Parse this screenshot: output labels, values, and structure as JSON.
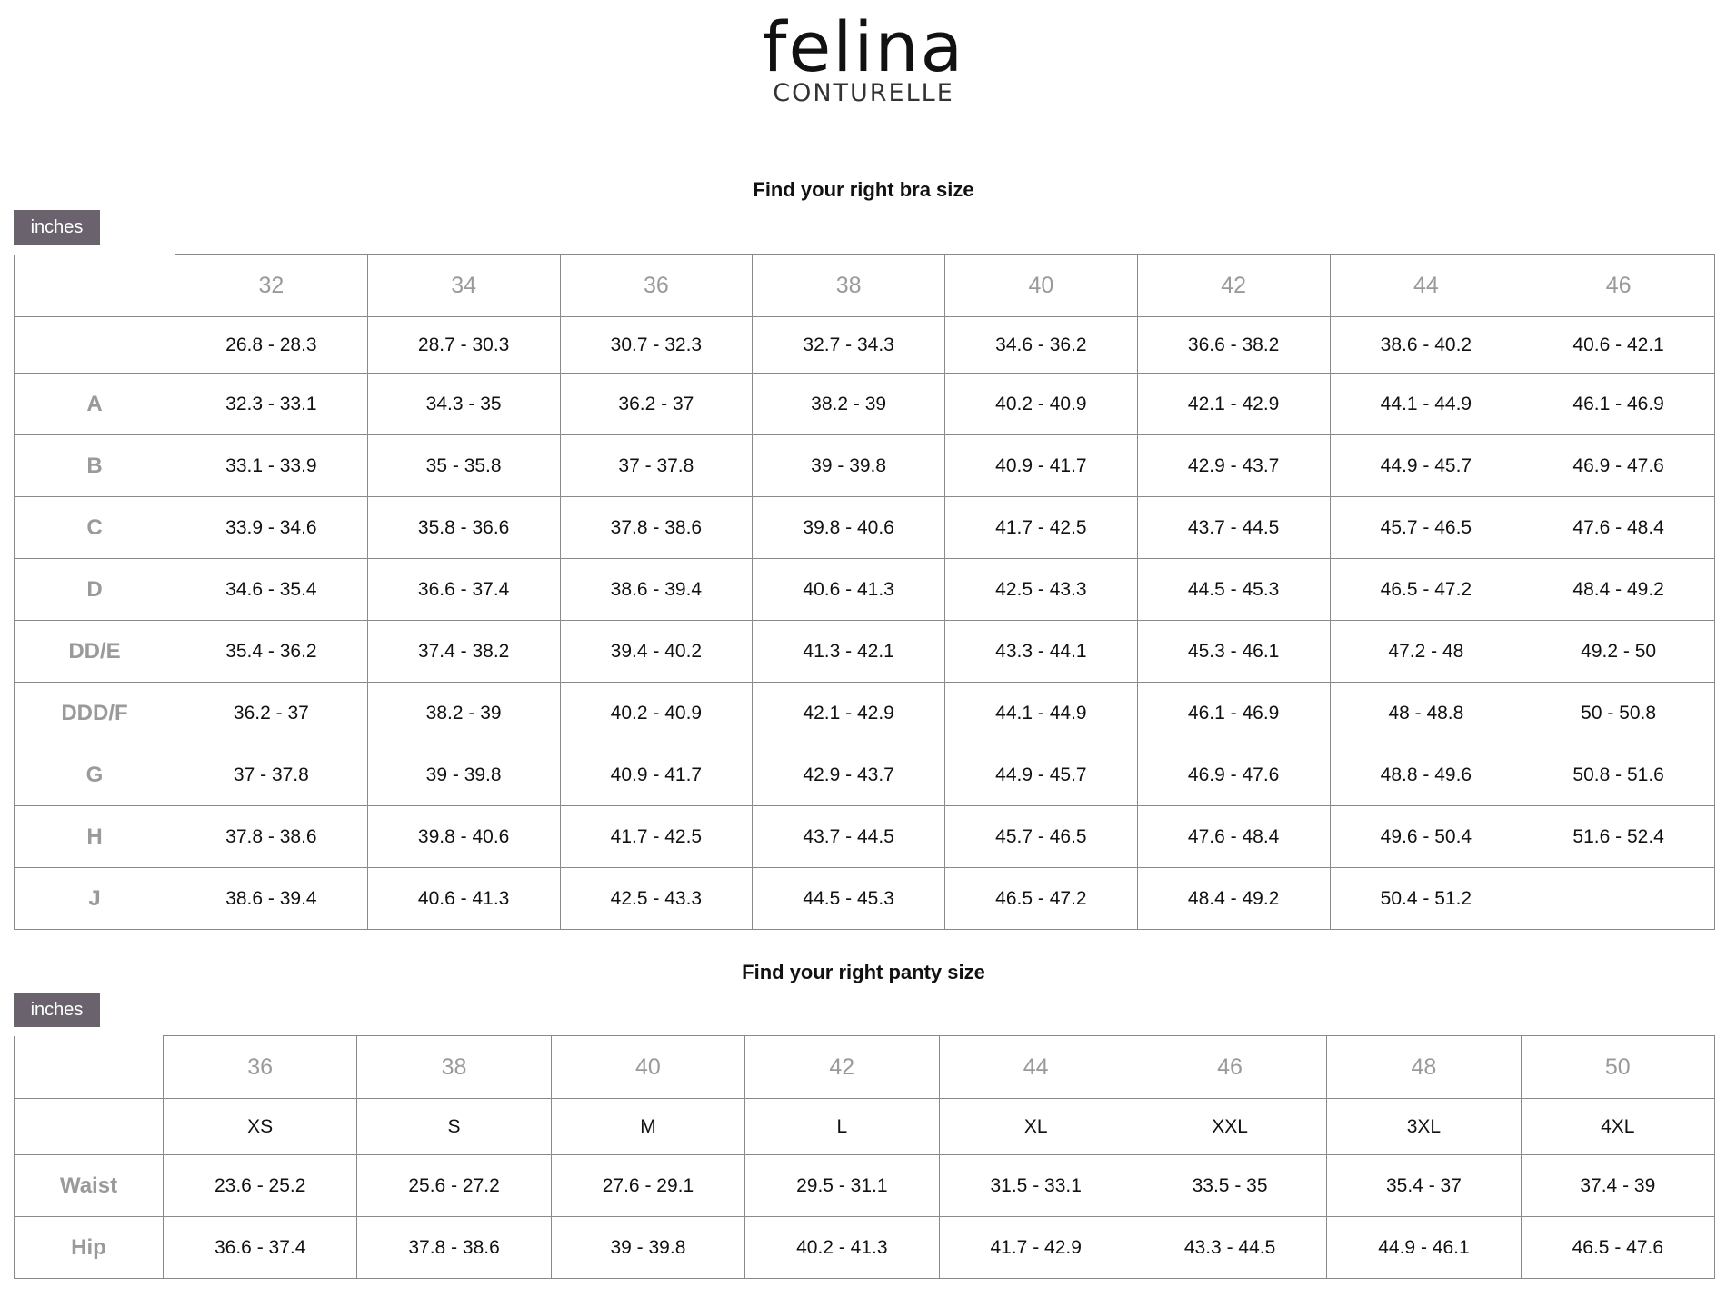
{
  "logo": {
    "brand": "felina",
    "sub": "CONTURELLE"
  },
  "bra": {
    "title": "Find your right bra size",
    "unit_tab": "inches",
    "headers": [
      "32",
      "34",
      "36",
      "38",
      "40",
      "42",
      "44",
      "46"
    ],
    "underbust": [
      "26.8 - 28.3",
      "28.7 - 30.3",
      "30.7 - 32.3",
      "32.7 - 34.3",
      "34.6 - 36.2",
      "36.6 - 38.2",
      "38.6 - 40.2",
      "40.6 - 42.1"
    ],
    "rows": [
      {
        "label": "A",
        "values": [
          "32.3 - 33.1",
          "34.3 - 35",
          "36.2 - 37",
          "38.2 - 39",
          "40.2 - 40.9",
          "42.1 - 42.9",
          "44.1 - 44.9",
          "46.1 - 46.9"
        ]
      },
      {
        "label": "B",
        "values": [
          "33.1 - 33.9",
          "35 - 35.8",
          "37 - 37.8",
          "39 - 39.8",
          "40.9 - 41.7",
          "42.9 - 43.7",
          "44.9 - 45.7",
          "46.9 - 47.6"
        ]
      },
      {
        "label": "C",
        "values": [
          "33.9 - 34.6",
          "35.8 - 36.6",
          "37.8 - 38.6",
          "39.8 - 40.6",
          "41.7 - 42.5",
          "43.7 - 44.5",
          "45.7 - 46.5",
          "47.6 - 48.4"
        ]
      },
      {
        "label": "D",
        "values": [
          "34.6 - 35.4",
          "36.6 - 37.4",
          "38.6 - 39.4",
          "40.6 - 41.3",
          "42.5 - 43.3",
          "44.5 - 45.3",
          "46.5 - 47.2",
          "48.4 - 49.2"
        ]
      },
      {
        "label": "DD/E",
        "values": [
          "35.4 - 36.2",
          "37.4 - 38.2",
          "39.4 - 40.2",
          "41.3 - 42.1",
          "43.3 - 44.1",
          "45.3 - 46.1",
          "47.2 - 48",
          "49.2 - 50"
        ]
      },
      {
        "label": "DDD/F",
        "values": [
          "36.2 - 37",
          "38.2 - 39",
          "40.2 - 40.9",
          "42.1 - 42.9",
          "44.1 - 44.9",
          "46.1 - 46.9",
          "48 - 48.8",
          "50 - 50.8"
        ]
      },
      {
        "label": "G",
        "values": [
          "37 - 37.8",
          "39 - 39.8",
          "40.9 - 41.7",
          "42.9 - 43.7",
          "44.9 - 45.7",
          "46.9 - 47.6",
          "48.8 - 49.6",
          "50.8 - 51.6"
        ]
      },
      {
        "label": "H",
        "values": [
          "37.8 - 38.6",
          "39.8 - 40.6",
          "41.7 - 42.5",
          "43.7 - 44.5",
          "45.7 - 46.5",
          "47.6 - 48.4",
          "49.6 - 50.4",
          "51.6 - 52.4"
        ]
      },
      {
        "label": "J",
        "values": [
          "38.6 - 39.4",
          "40.6 - 41.3",
          "42.5 - 43.3",
          "44.5 - 45.3",
          "46.5 - 47.2",
          "48.4 - 49.2",
          "50.4 - 51.2",
          ""
        ]
      }
    ]
  },
  "panty": {
    "title": "Find your right panty size",
    "unit_tab": "inches",
    "headers": [
      "36",
      "38",
      "40",
      "42",
      "44",
      "46",
      "48",
      "50"
    ],
    "letters": [
      "XS",
      "S",
      "M",
      "L",
      "XL",
      "XXL",
      "3XL",
      "4XL"
    ],
    "rows": [
      {
        "label": "Waist",
        "values": [
          "23.6 - 25.2",
          "25.6 - 27.2",
          "27.6 - 29.1",
          "29.5 - 31.1",
          "31.5 - 33.1",
          "33.5 - 35",
          "35.4 - 37",
          "37.4 - 39"
        ]
      },
      {
        "label": "Hip",
        "values": [
          "36.6 - 37.4",
          "37.8 - 38.6",
          "39 - 39.8",
          "40.2 - 41.3",
          "41.7 - 42.9",
          "43.3 - 44.5",
          "44.9 - 46.1",
          "46.5 - 47.6"
        ]
      }
    ]
  },
  "colors": {
    "tab_bg": "#6a636d",
    "header_text": "#9a9a9a",
    "border": "#8a8a8a"
  }
}
